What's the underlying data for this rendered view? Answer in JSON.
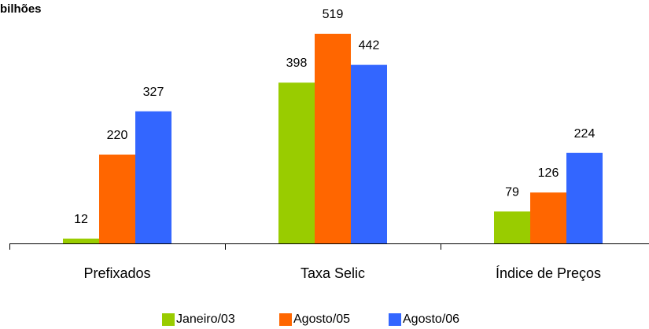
{
  "chart_data": {
    "type": "bar",
    "title": "bilhões",
    "categories": [
      "Prefixados",
      "Taxa Selic",
      "Índice de Preços"
    ],
    "series": [
      {
        "name": "Janeiro/03",
        "color": "#99CC00",
        "values": [
          12,
          398,
          79
        ]
      },
      {
        "name": "Agosto/05",
        "color": "#FF6600",
        "values": [
          220,
          519,
          126
        ]
      },
      {
        "name": "Agosto/06",
        "color": "#3366FF",
        "values": [
          327,
          442,
          224
        ]
      }
    ],
    "ylim": [
      0,
      519
    ],
    "grid": false,
    "legend": "bottom"
  }
}
